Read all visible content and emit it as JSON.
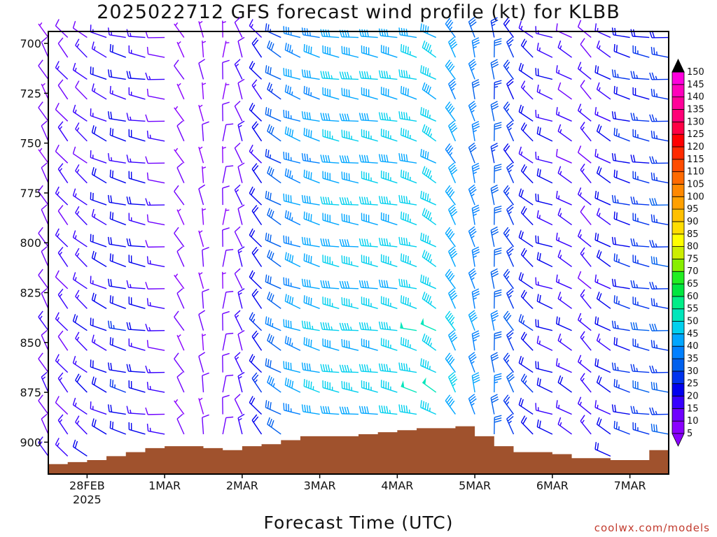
{
  "title": "2025022712 GFS forecast wind profile (kt) for KLBB",
  "xlabel": "Forecast Time (UTC)",
  "credit": "coolwx.com/models",
  "chart_data": {
    "type": "wind-profile",
    "title": "2025022712 GFS forecast wind profile (kt) for KLBB",
    "xlabel": "Forecast Time (UTC)",
    "ylabel": "",
    "x_range_hours": [
      0,
      192
    ],
    "y_range_hpa": [
      694,
      916
    ],
    "x_ticks": [
      {
        "hours": 12,
        "label": "28FEB",
        "sublabel": "2025"
      },
      {
        "hours": 36,
        "label": "1MAR"
      },
      {
        "hours": 60,
        "label": "2MAR"
      },
      {
        "hours": 84,
        "label": "3MAR"
      },
      {
        "hours": 108,
        "label": "4MAR"
      },
      {
        "hours": 132,
        "label": "5MAR"
      },
      {
        "hours": 156,
        "label": "6MAR"
      },
      {
        "hours": 180,
        "label": "7MAR"
      }
    ],
    "y_ticks": [
      700,
      725,
      750,
      775,
      800,
      825,
      850,
      875,
      900
    ],
    "colorbar": {
      "levels": [
        5,
        10,
        15,
        20,
        25,
        30,
        35,
        40,
        45,
        50,
        55,
        60,
        65,
        70,
        75,
        80,
        85,
        90,
        95,
        100,
        105,
        110,
        115,
        120,
        125,
        130,
        135,
        140,
        145,
        150
      ],
      "colors": [
        "#8a00ff",
        "#6f00ff",
        "#3700ff",
        "#0000ee",
        "#0033ee",
        "#0060ee",
        "#0080ff",
        "#00a6ff",
        "#00d0ee",
        "#00e6bb",
        "#00ee88",
        "#00e640",
        "#22ee22",
        "#88ee00",
        "#ccee00",
        "#ffff00",
        "#ffdd00",
        "#ffc000",
        "#ffa000",
        "#ff8800",
        "#ff6a00",
        "#ff4c00",
        "#ff2a00",
        "#ff0000",
        "#ff0044",
        "#ff0077",
        "#ff0099",
        "#ff00bb",
        "#ff00dd",
        "#ff00ff"
      ]
    },
    "terrain_color": "#a0522d",
    "terrain_hpa": [
      {
        "hours": 0,
        "hpa": 911
      },
      {
        "hours": 6,
        "hpa": 910
      },
      {
        "hours": 12,
        "hpa": 909
      },
      {
        "hours": 18,
        "hpa": 907
      },
      {
        "hours": 24,
        "hpa": 905
      },
      {
        "hours": 30,
        "hpa": 903
      },
      {
        "hours": 36,
        "hpa": 902
      },
      {
        "hours": 42,
        "hpa": 902
      },
      {
        "hours": 48,
        "hpa": 903
      },
      {
        "hours": 54,
        "hpa": 904
      },
      {
        "hours": 60,
        "hpa": 902
      },
      {
        "hours": 66,
        "hpa": 901
      },
      {
        "hours": 72,
        "hpa": 899
      },
      {
        "hours": 78,
        "hpa": 897
      },
      {
        "hours": 84,
        "hpa": 897
      },
      {
        "hours": 90,
        "hpa": 897
      },
      {
        "hours": 96,
        "hpa": 896
      },
      {
        "hours": 102,
        "hpa": 895
      },
      {
        "hours": 108,
        "hpa": 894
      },
      {
        "hours": 114,
        "hpa": 893
      },
      {
        "hours": 126,
        "hpa": 892
      },
      {
        "hours": 132,
        "hpa": 897
      },
      {
        "hours": 138,
        "hpa": 902
      },
      {
        "hours": 144,
        "hpa": 905
      },
      {
        "hours": 150,
        "hpa": 905
      },
      {
        "hours": 156,
        "hpa": 906
      },
      {
        "hours": 162,
        "hpa": 908
      },
      {
        "hours": 168,
        "hpa": 908
      },
      {
        "hours": 174,
        "hpa": 909
      },
      {
        "hours": 186,
        "hpa": 904
      },
      {
        "hours": 192,
        "hpa": 902
      }
    ],
    "barb_levels_hpa": [
      697,
      707,
      718,
      728,
      739,
      749,
      760,
      770,
      781,
      791,
      802,
      812,
      823,
      833,
      844,
      854,
      865,
      875,
      886,
      896,
      907
    ],
    "barb_columns": [
      {
        "hours": 0,
        "dir": 330,
        "spd": 10
      },
      {
        "hours": 6,
        "dir": 320,
        "spd": 13
      },
      {
        "hours": 12,
        "dir": 310,
        "spd": 15
      },
      {
        "hours": 18,
        "dir": 295,
        "spd": 18
      },
      {
        "hours": 24,
        "dir": 285,
        "spd": 20
      },
      {
        "hours": 30,
        "dir": 280,
        "spd": 18
      },
      {
        "hours": 36,
        "dir": 275,
        "spd": 12
      },
      {
        "hours": 42,
        "dir": 330,
        "spd": 8
      },
      {
        "hours": 48,
        "dir": 350,
        "spd": 7
      },
      {
        "hours": 54,
        "dir": 5,
        "spd": 9
      },
      {
        "hours": 60,
        "dir": 340,
        "spd": 12
      },
      {
        "hours": 66,
        "dir": 320,
        "spd": 20
      },
      {
        "hours": 72,
        "dir": 300,
        "spd": 30
      },
      {
        "hours": 78,
        "dir": 290,
        "spd": 37
      },
      {
        "hours": 84,
        "dir": 285,
        "spd": 40
      },
      {
        "hours": 90,
        "dir": 280,
        "spd": 42
      },
      {
        "hours": 96,
        "dir": 278,
        "spd": 42
      },
      {
        "hours": 102,
        "dir": 280,
        "spd": 43
      },
      {
        "hours": 108,
        "dir": 282,
        "spd": 44
      },
      {
        "hours": 114,
        "dir": 285,
        "spd": 45
      },
      {
        "hours": 120,
        "dir": 300,
        "spd": 45
      },
      {
        "hours": 126,
        "dir": 330,
        "spd": 40
      },
      {
        "hours": 132,
        "dir": 345,
        "spd": 35
      },
      {
        "hours": 138,
        "dir": 355,
        "spd": 30
      },
      {
        "hours": 144,
        "dir": 330,
        "spd": 25
      },
      {
        "hours": 150,
        "dir": 310,
        "spd": 20
      },
      {
        "hours": 156,
        "dir": 290,
        "spd": 18
      },
      {
        "hours": 162,
        "dir": 300,
        "spd": 15
      },
      {
        "hours": 168,
        "dir": 315,
        "spd": 14
      },
      {
        "hours": 174,
        "dir": 300,
        "spd": 18
      },
      {
        "hours": 180,
        "dir": 285,
        "spd": 22
      },
      {
        "hours": 186,
        "dir": 280,
        "spd": 25
      },
      {
        "hours": 192,
        "dir": 275,
        "spd": 26
      }
    ]
  }
}
